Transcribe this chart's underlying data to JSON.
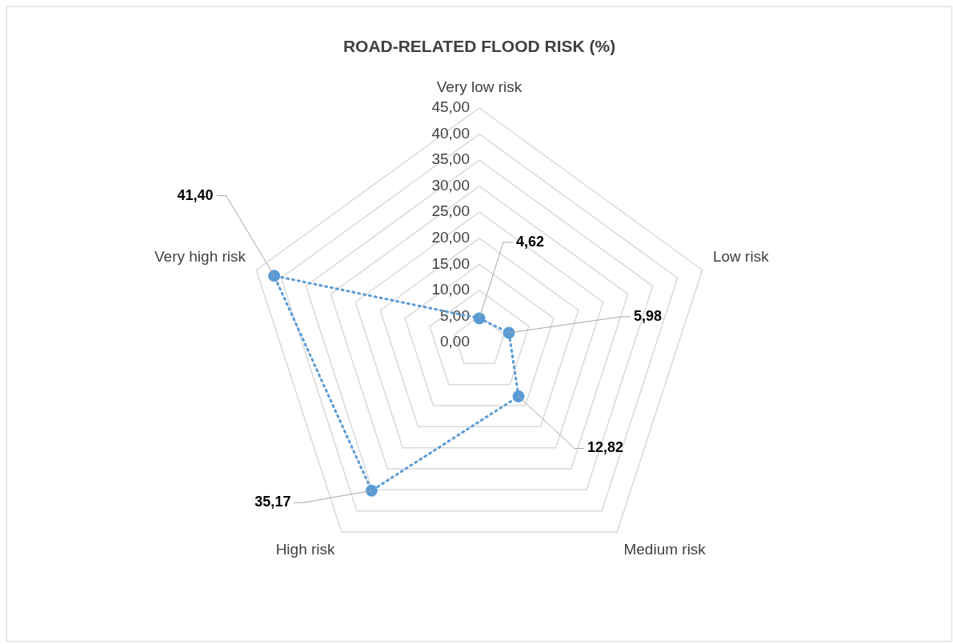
{
  "chart_data": {
    "type": "radar",
    "title": "ROAD-RELATED FLOOD RISK (%)",
    "categories": [
      "Very low risk",
      "Low risk",
      "Medium risk",
      "High risk",
      "Very high risk"
    ],
    "series": [
      {
        "color": "#5b9bd5",
        "values": [
          4.62,
          5.98,
          12.82,
          35.17,
          41.4
        ],
        "value_labels": [
          "4,62",
          "5,98",
          "12,82",
          "35,17",
          "41,40"
        ]
      }
    ],
    "ylim": [
      0,
      45
    ],
    "yticks": [
      {
        "value": 0,
        "label": "0,00"
      },
      {
        "value": 5,
        "label": "5,00"
      },
      {
        "value": 10,
        "label": "10,00"
      },
      {
        "value": 15,
        "label": "15,00"
      },
      {
        "value": 20,
        "label": "20,00"
      },
      {
        "value": 25,
        "label": "25,00"
      },
      {
        "value": 30,
        "label": "30,00"
      },
      {
        "value": 35,
        "label": "35,00"
      },
      {
        "value": 40,
        "label": "40,00"
      },
      {
        "value": 45,
        "label": "45,00"
      }
    ],
    "grid": true,
    "legend": false,
    "marker": "circle",
    "line_style": "dotted"
  }
}
